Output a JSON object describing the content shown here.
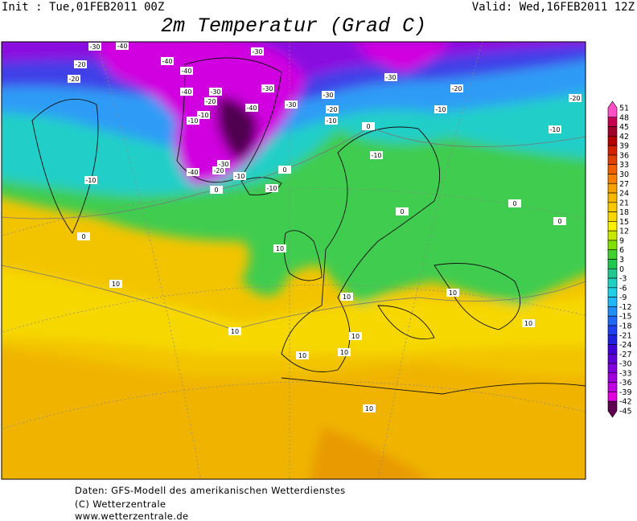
{
  "header": {
    "init": "Init : Tue,01FEB2011 00Z",
    "valid": "Valid: Wed,16FEB2011 12Z",
    "title": "2m Temperatur (Grad C)"
  },
  "legend": {
    "labels": [
      51,
      48,
      45,
      42,
      39,
      36,
      33,
      30,
      27,
      24,
      21,
      18,
      15,
      12,
      9,
      6,
      3,
      0,
      -3,
      -6,
      -9,
      -12,
      -15,
      -18,
      -21,
      -24,
      -27,
      -30,
      -33,
      -36,
      -39,
      -42,
      -45
    ],
    "colors": [
      "#ff50c8",
      "#c80050",
      "#a00028",
      "#b40000",
      "#d22000",
      "#e04000",
      "#f06000",
      "#f88000",
      "#f8a000",
      "#f8b800",
      "#f8c800",
      "#f8d800",
      "#f8f000",
      "#c8e800",
      "#80e000",
      "#40d030",
      "#20c850",
      "#20c890",
      "#20d0c0",
      "#20d0e8",
      "#20b8f8",
      "#2090f8",
      "#2068f8",
      "#2040f0",
      "#2020e0",
      "#4000d8",
      "#6000d8",
      "#8000e0",
      "#a000e0",
      "#c000e0",
      "#e000e0",
      "#600050"
    ]
  },
  "map": {
    "contour_labels": [
      -30,
      -40,
      -40,
      -30,
      -20,
      -20,
      -40,
      -30,
      -20,
      -40,
      -30,
      -30,
      -30,
      -20,
      -20,
      -10,
      -10,
      -40,
      -30,
      -20,
      -10,
      -10,
      0,
      -10,
      -10,
      -40,
      -20,
      -30,
      -10,
      0,
      -10,
      0,
      -10,
      0,
      0,
      0,
      0,
      10,
      10,
      10,
      10,
      10,
      10,
      10,
      10,
      10,
      10
    ]
  },
  "footer": {
    "lines": [
      "Daten: GFS-Modell des amerikanischen Wetterdienstes",
      "(C) Wetterzentrale",
      "www.wetterzentrale.de"
    ]
  }
}
